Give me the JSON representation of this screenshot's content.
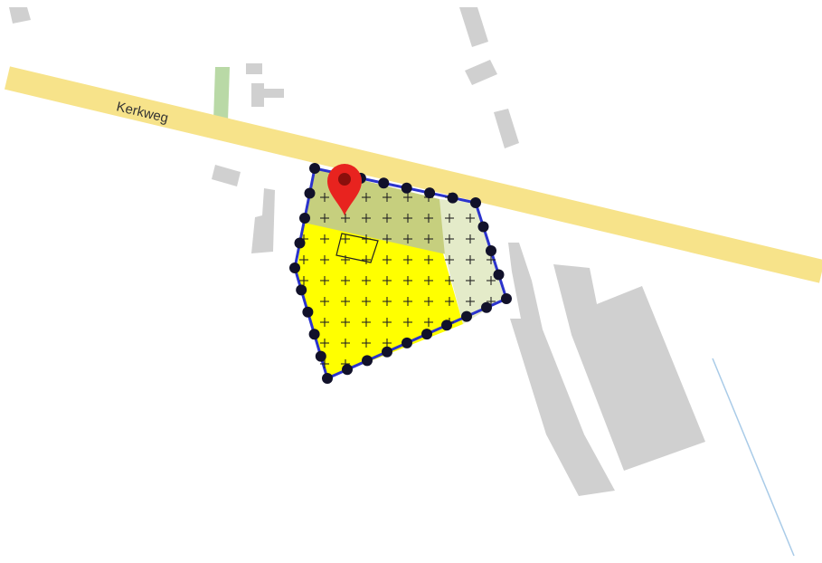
{
  "map": {
    "road": {
      "name": "Kerkweg",
      "color": "#f7e38a"
    },
    "colors": {
      "building": "#d0d0d0",
      "grass_strip": "#b9d9a6",
      "parcel_main": "#ffff00",
      "parcel_north": "#c6cf7e",
      "parcel_east": "#e4ebc9",
      "parcel_outline": "#2b33cc",
      "vertex_marker": "#11112a",
      "location_pin": "#e8231f",
      "water_line": "#a9cbe8"
    },
    "icons": {
      "location_pin": "map-pin-icon"
    }
  }
}
